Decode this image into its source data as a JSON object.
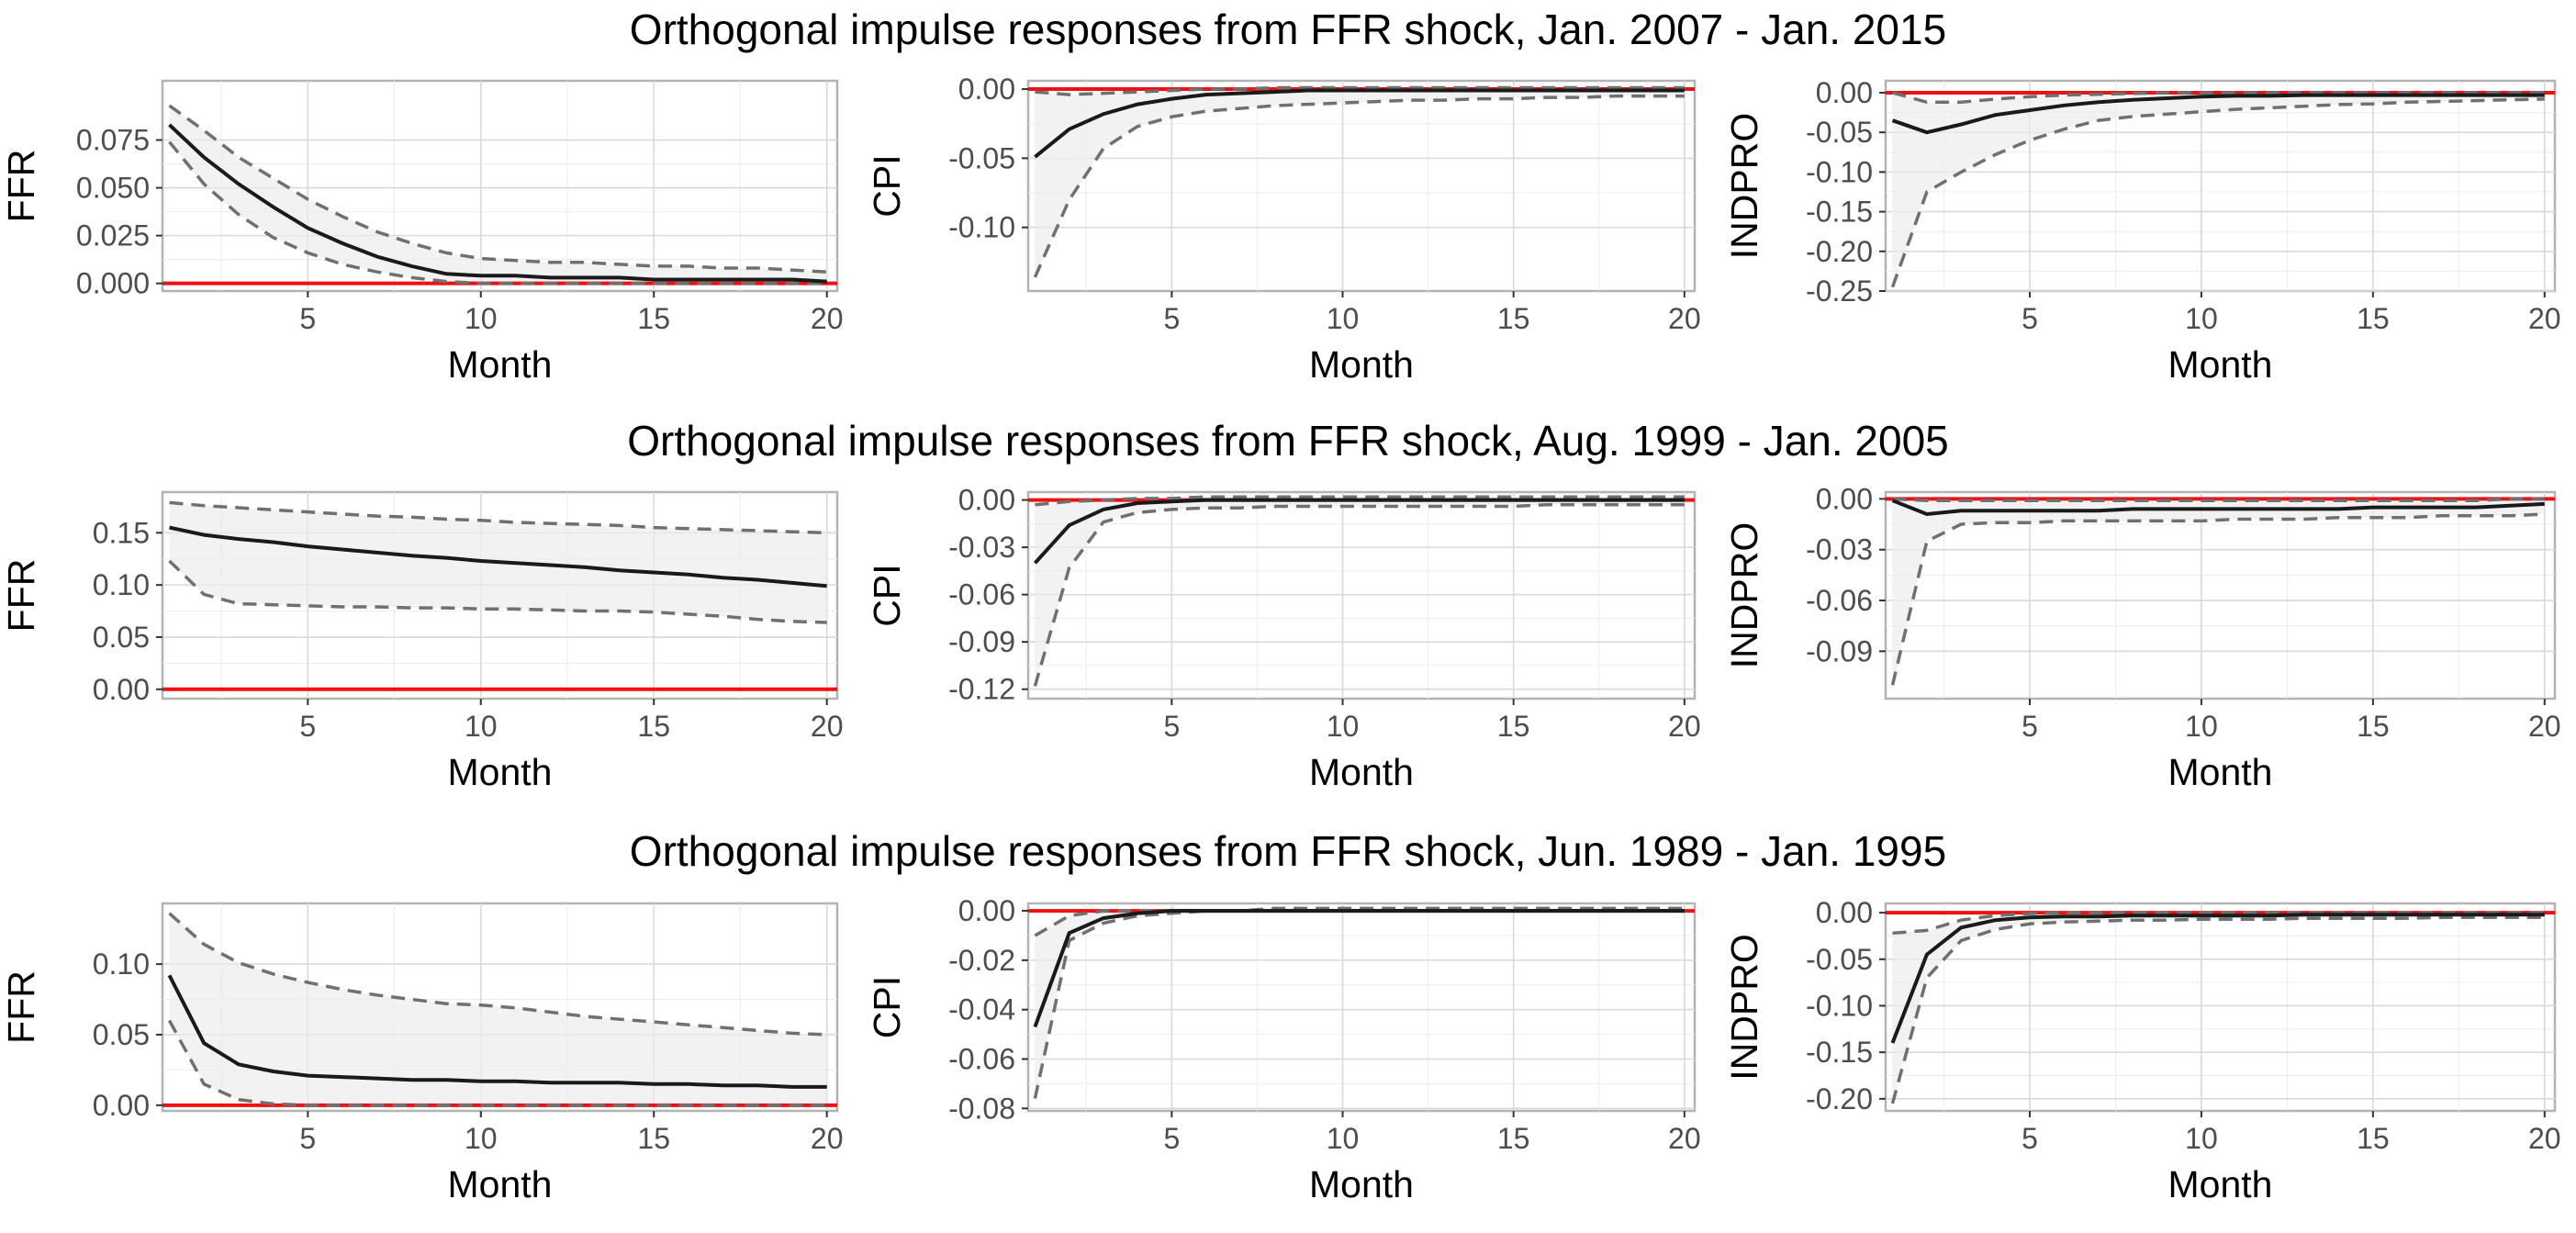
{
  "row_titles": [
    "Orthogonal impulse responses from FFR shock, Jan. 2007 - Jan. 2015",
    "Orthogonal impulse responses from FFR shock, Aug. 1999 - Jan. 2005",
    "Orthogonal impulse responses from FFR shock, Jun. 1989 - Jan. 1995"
  ],
  "colors": {
    "zero_line": "#ee1111",
    "response": "#1a1a1a",
    "bounds": "#707070",
    "band": "#ececec"
  },
  "chart_data": [
    {
      "type": "line",
      "row": 0,
      "col": 0,
      "xlabel": "Month",
      "ylabel": "FFR",
      "xlim": [
        0.8,
        20.3
      ],
      "ylim": [
        -0.004,
        0.106
      ],
      "xticks": [
        5,
        10,
        15,
        20
      ],
      "xtick_labels": [
        "5",
        "10",
        "15",
        "20"
      ],
      "yticks": [
        0,
        0.025,
        0.05,
        0.075
      ],
      "ytick_labels": [
        "0.000",
        "0.025",
        "0.050",
        "0.075"
      ],
      "x": [
        1,
        2,
        3,
        4,
        5,
        6,
        7,
        8,
        9,
        10,
        11,
        12,
        13,
        14,
        15,
        16,
        17,
        18,
        19,
        20
      ],
      "response": [
        0.083,
        0.066,
        0.052,
        0.04,
        0.029,
        0.021,
        0.014,
        0.009,
        0.005,
        0.004,
        0.004,
        0.003,
        0.003,
        0.003,
        0.002,
        0.002,
        0.002,
        0.002,
        0.002,
        0.001
      ],
      "upper": [
        0.093,
        0.08,
        0.066,
        0.055,
        0.044,
        0.035,
        0.027,
        0.021,
        0.016,
        0.013,
        0.012,
        0.011,
        0.011,
        0.01,
        0.009,
        0.009,
        0.008,
        0.008,
        0.007,
        0.006
      ],
      "lower": [
        0.074,
        0.052,
        0.036,
        0.024,
        0.016,
        0.01,
        0.006,
        0.003,
        0.001,
        0.0,
        0.0,
        0.0,
        0.0,
        0.0,
        0.0,
        0.0,
        0.0,
        0.0,
        0.0,
        0.0
      ]
    },
    {
      "type": "line",
      "row": 0,
      "col": 1,
      "xlabel": "Month",
      "ylabel": "CPI",
      "xlim": [
        0.8,
        20.3
      ],
      "ylim": [
        -0.146,
        0.006
      ],
      "xticks": [
        5,
        10,
        15,
        20
      ],
      "xtick_labels": [
        "5",
        "10",
        "15",
        "20"
      ],
      "yticks": [
        0,
        -0.05,
        -0.1
      ],
      "ytick_labels": [
        "0.00",
        "-0.05",
        "-0.10"
      ],
      "x": [
        1,
        2,
        3,
        4,
        5,
        6,
        7,
        8,
        9,
        10,
        11,
        12,
        13,
        14,
        15,
        16,
        17,
        18,
        19,
        20
      ],
      "response": [
        -0.049,
        -0.029,
        -0.018,
        -0.011,
        -0.007,
        -0.004,
        -0.003,
        -0.002,
        -0.001,
        -0.001,
        -0.001,
        -0.001,
        -0.001,
        -0.001,
        -0.001,
        -0.001,
        -0.001,
        -0.001,
        -0.001,
        -0.001
      ],
      "upper": [
        -0.002,
        -0.004,
        -0.003,
        -0.002,
        -0.001,
        0.0,
        0.0,
        0.001,
        0.001,
        0.001,
        0.001,
        0.001,
        0.001,
        0.001,
        0.001,
        0.001,
        0.001,
        0.001,
        0.001,
        0.001
      ],
      "lower": [
        -0.136,
        -0.08,
        -0.043,
        -0.027,
        -0.02,
        -0.016,
        -0.014,
        -0.012,
        -0.011,
        -0.01,
        -0.009,
        -0.008,
        -0.008,
        -0.007,
        -0.007,
        -0.006,
        -0.006,
        -0.005,
        -0.005,
        -0.005
      ]
    },
    {
      "type": "line",
      "row": 0,
      "col": 2,
      "xlabel": "Month",
      "ylabel": "INDPRO",
      "xlim": [
        0.8,
        20.3
      ],
      "ylim": [
        -0.25,
        0.015
      ],
      "xticks": [
        5,
        10,
        15,
        20
      ],
      "xtick_labels": [
        "5",
        "10",
        "15",
        "20"
      ],
      "yticks": [
        0,
        -0.05,
        -0.1,
        -0.15,
        -0.2,
        -0.25
      ],
      "ytick_labels": [
        "0.00",
        "-0.05",
        "-0.10",
        "-0.15",
        "-0.20",
        "-0.25"
      ],
      "x": [
        1,
        2,
        3,
        4,
        5,
        6,
        7,
        8,
        9,
        10,
        11,
        12,
        13,
        14,
        15,
        16,
        17,
        18,
        19,
        20
      ],
      "response": [
        -0.035,
        -0.05,
        -0.04,
        -0.028,
        -0.022,
        -0.016,
        -0.012,
        -0.009,
        -0.007,
        -0.005,
        -0.004,
        -0.004,
        -0.003,
        -0.003,
        -0.003,
        -0.003,
        -0.003,
        -0.003,
        -0.003,
        -0.003
      ],
      "upper": [
        0.0,
        -0.012,
        -0.012,
        -0.008,
        -0.005,
        -0.003,
        -0.002,
        -0.001,
        0.0,
        0.0,
        0.0,
        0.0,
        0.0,
        0.0,
        0.0,
        0.0,
        0.0,
        0.0,
        0.0,
        0.0
      ],
      "lower": [
        -0.245,
        -0.125,
        -0.1,
        -0.078,
        -0.06,
        -0.046,
        -0.035,
        -0.03,
        -0.027,
        -0.024,
        -0.021,
        -0.019,
        -0.017,
        -0.015,
        -0.014,
        -0.012,
        -0.011,
        -0.01,
        -0.009,
        -0.008
      ]
    },
    {
      "type": "line",
      "row": 1,
      "col": 0,
      "xlabel": "Month",
      "ylabel": "FFR",
      "xlim": [
        0.8,
        20.3
      ],
      "ylim": [
        -0.009,
        0.189
      ],
      "xticks": [
        5,
        10,
        15,
        20
      ],
      "xtick_labels": [
        "5",
        "10",
        "15",
        "20"
      ],
      "yticks": [
        0,
        0.05,
        0.1,
        0.15
      ],
      "ytick_labels": [
        "0.00",
        "0.05",
        "0.10",
        "0.15"
      ],
      "x": [
        1,
        2,
        3,
        4,
        5,
        6,
        7,
        8,
        9,
        10,
        11,
        12,
        13,
        14,
        15,
        16,
        17,
        18,
        19,
        20
      ],
      "response": [
        0.155,
        0.148,
        0.144,
        0.141,
        0.137,
        0.134,
        0.131,
        0.128,
        0.126,
        0.123,
        0.121,
        0.119,
        0.117,
        0.114,
        0.112,
        0.11,
        0.107,
        0.105,
        0.102,
        0.099
      ],
      "upper": [
        0.179,
        0.176,
        0.174,
        0.172,
        0.17,
        0.168,
        0.166,
        0.165,
        0.163,
        0.162,
        0.16,
        0.159,
        0.158,
        0.157,
        0.155,
        0.154,
        0.153,
        0.152,
        0.151,
        0.15
      ],
      "lower": [
        0.123,
        0.091,
        0.082,
        0.081,
        0.08,
        0.079,
        0.079,
        0.078,
        0.078,
        0.077,
        0.077,
        0.076,
        0.075,
        0.075,
        0.074,
        0.072,
        0.07,
        0.067,
        0.065,
        0.064
      ]
    },
    {
      "type": "line",
      "row": 1,
      "col": 1,
      "xlabel": "Month",
      "ylabel": "CPI",
      "xlim": [
        0.8,
        20.3
      ],
      "ylim": [
        -0.126,
        0.005
      ],
      "xticks": [
        5,
        10,
        15,
        20
      ],
      "xtick_labels": [
        "5",
        "10",
        "15",
        "20"
      ],
      "yticks": [
        0,
        -0.03,
        -0.06,
        -0.09,
        -0.12
      ],
      "ytick_labels": [
        "0.00",
        "-0.03",
        "-0.06",
        "-0.09",
        "-0.12"
      ],
      "x": [
        1,
        2,
        3,
        4,
        5,
        6,
        7,
        8,
        9,
        10,
        11,
        12,
        13,
        14,
        15,
        16,
        17,
        18,
        19,
        20
      ],
      "response": [
        -0.04,
        -0.016,
        -0.006,
        -0.002,
        -0.001,
        0.0,
        0.0,
        0.0,
        0.0,
        0.0,
        0.0,
        0.0,
        0.0,
        0.0,
        0.0,
        0.0,
        0.0,
        0.0,
        0.0,
        0.0
      ],
      "upper": [
        -0.003,
        -0.001,
        0.0,
        0.001,
        0.001,
        0.002,
        0.002,
        0.002,
        0.002,
        0.002,
        0.002,
        0.002,
        0.002,
        0.002,
        0.002,
        0.002,
        0.002,
        0.002,
        0.002,
        0.002
      ],
      "lower": [
        -0.118,
        -0.043,
        -0.014,
        -0.008,
        -0.006,
        -0.005,
        -0.005,
        -0.004,
        -0.004,
        -0.004,
        -0.004,
        -0.004,
        -0.004,
        -0.004,
        -0.004,
        -0.003,
        -0.003,
        -0.003,
        -0.003,
        -0.003
      ]
    },
    {
      "type": "line",
      "row": 1,
      "col": 2,
      "xlabel": "Month",
      "ylabel": "INDPRO",
      "xlim": [
        0.8,
        20.3
      ],
      "ylim": [
        -0.118,
        0.004
      ],
      "xticks": [
        5,
        10,
        15,
        20
      ],
      "xtick_labels": [
        "5",
        "10",
        "15",
        "20"
      ],
      "yticks": [
        0,
        -0.03,
        -0.06,
        -0.09
      ],
      "ytick_labels": [
        "0.00",
        "-0.03",
        "-0.06",
        "-0.09"
      ],
      "x": [
        1,
        2,
        3,
        4,
        5,
        6,
        7,
        8,
        9,
        10,
        11,
        12,
        13,
        14,
        15,
        16,
        17,
        18,
        19,
        20
      ],
      "response": [
        -0.001,
        -0.009,
        -0.007,
        -0.007,
        -0.007,
        -0.007,
        -0.007,
        -0.006,
        -0.006,
        -0.006,
        -0.006,
        -0.006,
        -0.006,
        -0.006,
        -0.005,
        -0.005,
        -0.005,
        -0.005,
        -0.004,
        -0.003
      ],
      "upper": [
        0.0,
        -0.001,
        -0.001,
        -0.001,
        -0.001,
        -0.001,
        -0.001,
        -0.001,
        -0.001,
        -0.001,
        -0.001,
        -0.001,
        -0.001,
        -0.001,
        -0.001,
        -0.001,
        -0.001,
        -0.001,
        0.0,
        0.0
      ],
      "lower": [
        -0.11,
        -0.025,
        -0.015,
        -0.014,
        -0.014,
        -0.013,
        -0.013,
        -0.013,
        -0.013,
        -0.013,
        -0.012,
        -0.012,
        -0.012,
        -0.011,
        -0.011,
        -0.011,
        -0.01,
        -0.01,
        -0.01,
        -0.009
      ]
    },
    {
      "type": "line",
      "row": 2,
      "col": 0,
      "xlabel": "Month",
      "ylabel": "FFR",
      "xlim": [
        0.8,
        20.3
      ],
      "ylim": [
        -0.004,
        0.143
      ],
      "xticks": [
        5,
        10,
        15,
        20
      ],
      "xtick_labels": [
        "5",
        "10",
        "15",
        "20"
      ],
      "yticks": [
        0,
        0.05,
        0.1
      ],
      "ytick_labels": [
        "0.00",
        "0.05",
        "0.10"
      ],
      "x": [
        1,
        2,
        3,
        4,
        5,
        6,
        7,
        8,
        9,
        10,
        11,
        12,
        13,
        14,
        15,
        16,
        17,
        18,
        19,
        20
      ],
      "response": [
        0.092,
        0.044,
        0.029,
        0.024,
        0.021,
        0.02,
        0.019,
        0.018,
        0.018,
        0.017,
        0.017,
        0.016,
        0.016,
        0.016,
        0.015,
        0.015,
        0.014,
        0.014,
        0.013,
        0.013
      ],
      "upper": [
        0.136,
        0.114,
        0.101,
        0.093,
        0.087,
        0.082,
        0.078,
        0.075,
        0.072,
        0.071,
        0.069,
        0.066,
        0.063,
        0.061,
        0.059,
        0.057,
        0.055,
        0.053,
        0.051,
        0.05
      ],
      "lower": [
        0.06,
        0.015,
        0.004,
        0.001,
        0.0,
        0.0,
        0.0,
        0.0,
        0.0,
        0.0,
        0.0,
        0.0,
        0.0,
        0.0,
        0.0,
        0.0,
        0.0,
        0.0,
        0.0,
        0.0
      ]
    },
    {
      "type": "line",
      "row": 2,
      "col": 1,
      "xlabel": "Month",
      "ylabel": "CPI",
      "xlim": [
        0.8,
        20.3
      ],
      "ylim": [
        -0.081,
        0.003
      ],
      "xticks": [
        5,
        10,
        15,
        20
      ],
      "xtick_labels": [
        "5",
        "10",
        "15",
        "20"
      ],
      "yticks": [
        0,
        -0.02,
        -0.04,
        -0.06,
        -0.08
      ],
      "ytick_labels": [
        "0.00",
        "-0.02",
        "-0.04",
        "-0.06",
        "-0.08"
      ],
      "x": [
        1,
        2,
        3,
        4,
        5,
        6,
        7,
        8,
        9,
        10,
        11,
        12,
        13,
        14,
        15,
        16,
        17,
        18,
        19,
        20
      ],
      "response": [
        -0.047,
        -0.009,
        -0.003,
        -0.001,
        0.0,
        0.0,
        0.0,
        0.0,
        0.0,
        0.0,
        0.0,
        0.0,
        0.0,
        0.0,
        0.0,
        0.0,
        0.0,
        0.0,
        0.0,
        0.0
      ],
      "upper": [
        -0.01,
        -0.002,
        0.0,
        0.0,
        0.0,
        0.0,
        0.0,
        0.001,
        0.001,
        0.001,
        0.001,
        0.001,
        0.001,
        0.001,
        0.001,
        0.001,
        0.001,
        0.001,
        0.001,
        0.001
      ],
      "lower": [
        -0.076,
        -0.012,
        -0.005,
        -0.002,
        -0.001,
        0.0,
        0.0,
        0.0,
        0.0,
        0.0,
        0.0,
        0.0,
        0.0,
        0.0,
        0.0,
        0.0,
        0.0,
        0.0,
        0.0,
        0.0
      ]
    },
    {
      "type": "line",
      "row": 2,
      "col": 2,
      "xlabel": "Month",
      "ylabel": "INDPRO",
      "xlim": [
        0.8,
        20.3
      ],
      "ylim": [
        -0.213,
        0.01
      ],
      "xticks": [
        5,
        10,
        15,
        20
      ],
      "xtick_labels": [
        "5",
        "10",
        "15",
        "20"
      ],
      "yticks": [
        0,
        -0.05,
        -0.1,
        -0.15,
        -0.2
      ],
      "ytick_labels": [
        "0.00",
        "-0.05",
        "-0.10",
        "-0.15",
        "-0.20"
      ],
      "x": [
        1,
        2,
        3,
        4,
        5,
        6,
        7,
        8,
        9,
        10,
        11,
        12,
        13,
        14,
        15,
        16,
        17,
        18,
        19,
        20
      ],
      "response": [
        -0.14,
        -0.045,
        -0.016,
        -0.008,
        -0.005,
        -0.004,
        -0.004,
        -0.003,
        -0.003,
        -0.003,
        -0.003,
        -0.003,
        -0.002,
        -0.002,
        -0.002,
        -0.002,
        -0.002,
        -0.002,
        -0.002,
        -0.002
      ],
      "upper": [
        -0.022,
        -0.019,
        -0.008,
        -0.003,
        -0.001,
        0.0,
        0.0,
        0.0,
        0.0,
        0.0,
        0.0,
        0.0,
        0.0,
        0.0,
        0.0,
        0.0,
        0.0,
        0.0,
        0.0,
        0.0
      ],
      "lower": [
        -0.205,
        -0.07,
        -0.03,
        -0.018,
        -0.012,
        -0.01,
        -0.009,
        -0.008,
        -0.008,
        -0.007,
        -0.007,
        -0.007,
        -0.006,
        -0.006,
        -0.006,
        -0.006,
        -0.005,
        -0.005,
        -0.005,
        -0.005
      ]
    }
  ]
}
